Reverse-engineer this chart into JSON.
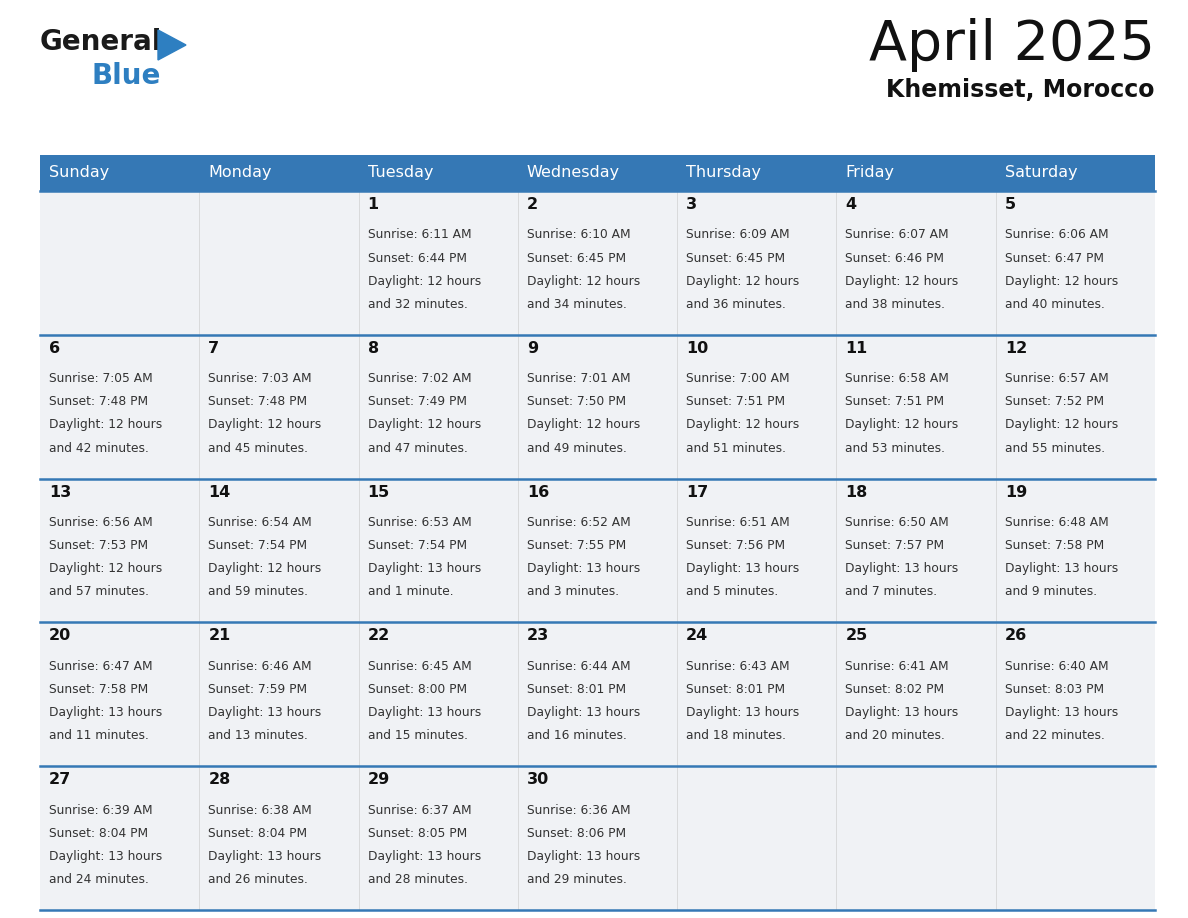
{
  "title": "April 2025",
  "subtitle": "Khemisset, Morocco",
  "header_bg_color": "#3578b5",
  "header_text_color": "#ffffff",
  "cell_bg_color": "#f0f2f5",
  "cell_empty_bg": "#f0f2f5",
  "row_separator_color": "#3578b5",
  "text_color": "#333333",
  "logo_black": "#1a1a1a",
  "logo_blue": "#2e7fc1",
  "logo_triangle": "#2e7fc1",
  "days_of_week": [
    "Sunday",
    "Monday",
    "Tuesday",
    "Wednesday",
    "Thursday",
    "Friday",
    "Saturday"
  ],
  "calendar_data": [
    [
      {
        "day": "",
        "sunrise": "",
        "sunset": "",
        "daylight": "",
        "daylight2": ""
      },
      {
        "day": "",
        "sunrise": "",
        "sunset": "",
        "daylight": "",
        "daylight2": ""
      },
      {
        "day": "1",
        "sunrise": "Sunrise: 6:11 AM",
        "sunset": "Sunset: 6:44 PM",
        "daylight": "Daylight: 12 hours",
        "daylight2": "and 32 minutes."
      },
      {
        "day": "2",
        "sunrise": "Sunrise: 6:10 AM",
        "sunset": "Sunset: 6:45 PM",
        "daylight": "Daylight: 12 hours",
        "daylight2": "and 34 minutes."
      },
      {
        "day": "3",
        "sunrise": "Sunrise: 6:09 AM",
        "sunset": "Sunset: 6:45 PM",
        "daylight": "Daylight: 12 hours",
        "daylight2": "and 36 minutes."
      },
      {
        "day": "4",
        "sunrise": "Sunrise: 6:07 AM",
        "sunset": "Sunset: 6:46 PM",
        "daylight": "Daylight: 12 hours",
        "daylight2": "and 38 minutes."
      },
      {
        "day": "5",
        "sunrise": "Sunrise: 6:06 AM",
        "sunset": "Sunset: 6:47 PM",
        "daylight": "Daylight: 12 hours",
        "daylight2": "and 40 minutes."
      }
    ],
    [
      {
        "day": "6",
        "sunrise": "Sunrise: 7:05 AM",
        "sunset": "Sunset: 7:48 PM",
        "daylight": "Daylight: 12 hours",
        "daylight2": "and 42 minutes."
      },
      {
        "day": "7",
        "sunrise": "Sunrise: 7:03 AM",
        "sunset": "Sunset: 7:48 PM",
        "daylight": "Daylight: 12 hours",
        "daylight2": "and 45 minutes."
      },
      {
        "day": "8",
        "sunrise": "Sunrise: 7:02 AM",
        "sunset": "Sunset: 7:49 PM",
        "daylight": "Daylight: 12 hours",
        "daylight2": "and 47 minutes."
      },
      {
        "day": "9",
        "sunrise": "Sunrise: 7:01 AM",
        "sunset": "Sunset: 7:50 PM",
        "daylight": "Daylight: 12 hours",
        "daylight2": "and 49 minutes."
      },
      {
        "day": "10",
        "sunrise": "Sunrise: 7:00 AM",
        "sunset": "Sunset: 7:51 PM",
        "daylight": "Daylight: 12 hours",
        "daylight2": "and 51 minutes."
      },
      {
        "day": "11",
        "sunrise": "Sunrise: 6:58 AM",
        "sunset": "Sunset: 7:51 PM",
        "daylight": "Daylight: 12 hours",
        "daylight2": "and 53 minutes."
      },
      {
        "day": "12",
        "sunrise": "Sunrise: 6:57 AM",
        "sunset": "Sunset: 7:52 PM",
        "daylight": "Daylight: 12 hours",
        "daylight2": "and 55 minutes."
      }
    ],
    [
      {
        "day": "13",
        "sunrise": "Sunrise: 6:56 AM",
        "sunset": "Sunset: 7:53 PM",
        "daylight": "Daylight: 12 hours",
        "daylight2": "and 57 minutes."
      },
      {
        "day": "14",
        "sunrise": "Sunrise: 6:54 AM",
        "sunset": "Sunset: 7:54 PM",
        "daylight": "Daylight: 12 hours",
        "daylight2": "and 59 minutes."
      },
      {
        "day": "15",
        "sunrise": "Sunrise: 6:53 AM",
        "sunset": "Sunset: 7:54 PM",
        "daylight": "Daylight: 13 hours",
        "daylight2": "and 1 minute."
      },
      {
        "day": "16",
        "sunrise": "Sunrise: 6:52 AM",
        "sunset": "Sunset: 7:55 PM",
        "daylight": "Daylight: 13 hours",
        "daylight2": "and 3 minutes."
      },
      {
        "day": "17",
        "sunrise": "Sunrise: 6:51 AM",
        "sunset": "Sunset: 7:56 PM",
        "daylight": "Daylight: 13 hours",
        "daylight2": "and 5 minutes."
      },
      {
        "day": "18",
        "sunrise": "Sunrise: 6:50 AM",
        "sunset": "Sunset: 7:57 PM",
        "daylight": "Daylight: 13 hours",
        "daylight2": "and 7 minutes."
      },
      {
        "day": "19",
        "sunrise": "Sunrise: 6:48 AM",
        "sunset": "Sunset: 7:58 PM",
        "daylight": "Daylight: 13 hours",
        "daylight2": "and 9 minutes."
      }
    ],
    [
      {
        "day": "20",
        "sunrise": "Sunrise: 6:47 AM",
        "sunset": "Sunset: 7:58 PM",
        "daylight": "Daylight: 13 hours",
        "daylight2": "and 11 minutes."
      },
      {
        "day": "21",
        "sunrise": "Sunrise: 6:46 AM",
        "sunset": "Sunset: 7:59 PM",
        "daylight": "Daylight: 13 hours",
        "daylight2": "and 13 minutes."
      },
      {
        "day": "22",
        "sunrise": "Sunrise: 6:45 AM",
        "sunset": "Sunset: 8:00 PM",
        "daylight": "Daylight: 13 hours",
        "daylight2": "and 15 minutes."
      },
      {
        "day": "23",
        "sunrise": "Sunrise: 6:44 AM",
        "sunset": "Sunset: 8:01 PM",
        "daylight": "Daylight: 13 hours",
        "daylight2": "and 16 minutes."
      },
      {
        "day": "24",
        "sunrise": "Sunrise: 6:43 AM",
        "sunset": "Sunset: 8:01 PM",
        "daylight": "Daylight: 13 hours",
        "daylight2": "and 18 minutes."
      },
      {
        "day": "25",
        "sunrise": "Sunrise: 6:41 AM",
        "sunset": "Sunset: 8:02 PM",
        "daylight": "Daylight: 13 hours",
        "daylight2": "and 20 minutes."
      },
      {
        "day": "26",
        "sunrise": "Sunrise: 6:40 AM",
        "sunset": "Sunset: 8:03 PM",
        "daylight": "Daylight: 13 hours",
        "daylight2": "and 22 minutes."
      }
    ],
    [
      {
        "day": "27",
        "sunrise": "Sunrise: 6:39 AM",
        "sunset": "Sunset: 8:04 PM",
        "daylight": "Daylight: 13 hours",
        "daylight2": "and 24 minutes."
      },
      {
        "day": "28",
        "sunrise": "Sunrise: 6:38 AM",
        "sunset": "Sunset: 8:04 PM",
        "daylight": "Daylight: 13 hours",
        "daylight2": "and 26 minutes."
      },
      {
        "day": "29",
        "sunrise": "Sunrise: 6:37 AM",
        "sunset": "Sunset: 8:05 PM",
        "daylight": "Daylight: 13 hours",
        "daylight2": "and 28 minutes."
      },
      {
        "day": "30",
        "sunrise": "Sunrise: 6:36 AM",
        "sunset": "Sunset: 8:06 PM",
        "daylight": "Daylight: 13 hours",
        "daylight2": "and 29 minutes."
      },
      {
        "day": "",
        "sunrise": "",
        "sunset": "",
        "daylight": "",
        "daylight2": ""
      },
      {
        "day": "",
        "sunrise": "",
        "sunset": "",
        "daylight": "",
        "daylight2": ""
      },
      {
        "day": "",
        "sunrise": "",
        "sunset": "",
        "daylight": "",
        "daylight2": ""
      }
    ]
  ]
}
